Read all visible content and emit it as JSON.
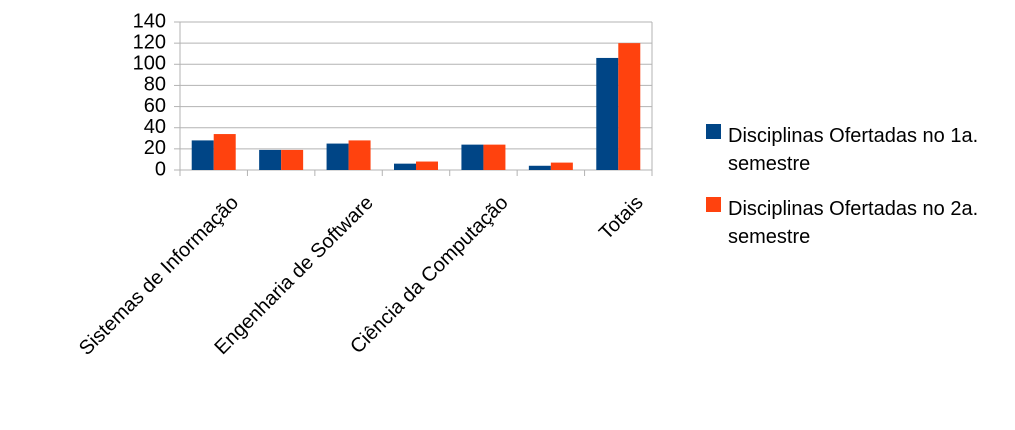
{
  "chart_data": {
    "type": "bar",
    "categories": [
      "Sistemas de Informação",
      null,
      "Engenharia de Software",
      null,
      "Ciência da Computação",
      null,
      "Totais"
    ],
    "series": [
      {
        "name": "Disciplinas Ofertadas no 1a. semestre",
        "color": "#004586",
        "values": [
          28,
          19,
          25,
          6,
          24,
          4,
          106
        ]
      },
      {
        "name": "Disciplinas Ofertadas no 2a. semestre",
        "color": "#ff420e",
        "values": [
          34,
          19,
          28,
          8,
          24,
          7,
          120
        ]
      }
    ],
    "ylim": [
      0,
      140
    ],
    "yticks": [
      0,
      20,
      40,
      60,
      80,
      100,
      120,
      140
    ],
    "grid": true,
    "legend": "right"
  }
}
